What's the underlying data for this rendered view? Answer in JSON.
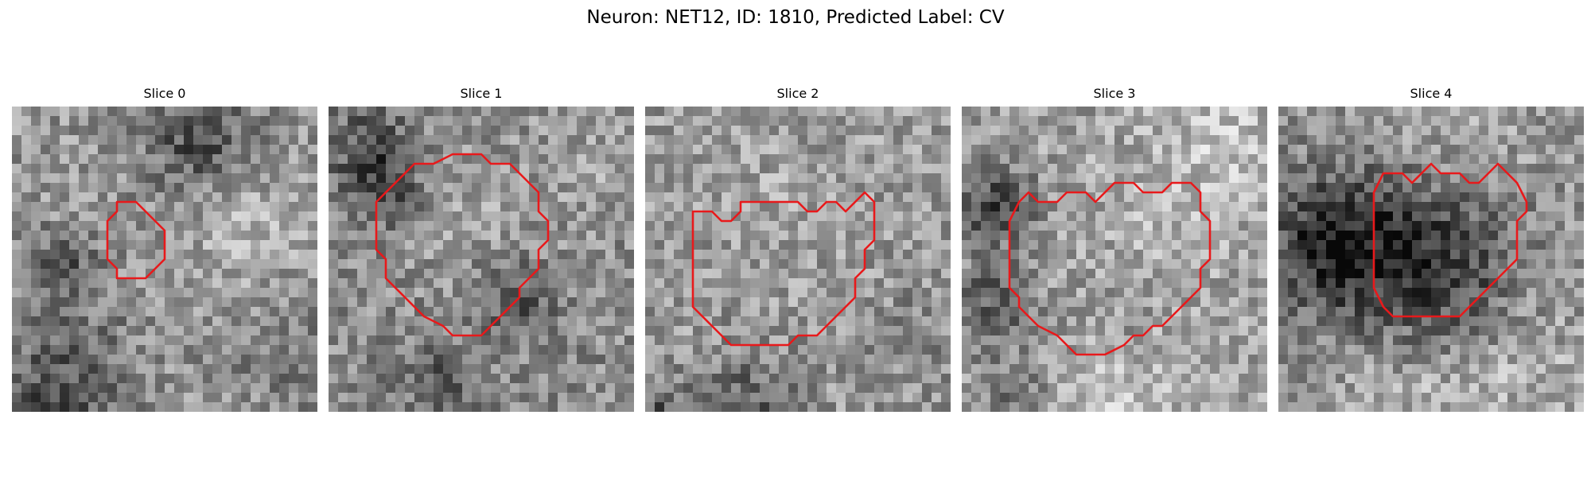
{
  "figure": {
    "title": "Neuron: NET12, ID: 1810, Predicted Label: CV"
  },
  "colors": {
    "background": "#ffffff",
    "contour": "#e8191b",
    "text": "#000000"
  },
  "colormap": "grayscale",
  "panels": [
    {
      "title": "Slice 0",
      "contour": "red outline of detected neuron"
    },
    {
      "title": "Slice 1",
      "contour": "red outline of detected neuron"
    },
    {
      "title": "Slice 2",
      "contour": "red outline of detected neuron"
    },
    {
      "title": "Slice 3",
      "contour": "red outline of detected neuron"
    },
    {
      "title": "Slice 4",
      "contour": "red outline of detected neuron"
    }
  ]
}
